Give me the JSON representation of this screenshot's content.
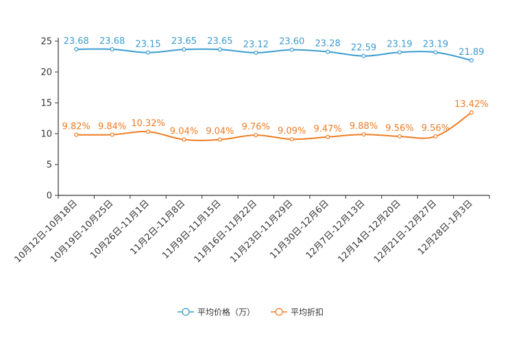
{
  "chart_data": {
    "type": "line",
    "title": "",
    "xlabel": "",
    "ylabel": "",
    "ylim": [
      0,
      25
    ],
    "yticks": [
      0,
      5,
      10,
      15,
      20,
      25
    ],
    "grid": false,
    "legend_position": "bottom-center",
    "categories": [
      "10月12日-10月18日",
      "10月19日-10月25日",
      "10月26日-11月1日",
      "11月2日-11月8日",
      "11月9日-11月15日",
      "11月16日-11月22日",
      "11月23日-11月29日",
      "11月30日-12月6日",
      "12月7日-12月13日",
      "12月14日-12月20日",
      "12月21日-12月27日",
      "12月28日-1月3日"
    ],
    "series": [
      {
        "name": "平均价格（万）",
        "color": "#3a9bd0",
        "values": [
          23.68,
          23.68,
          23.15,
          23.65,
          23.65,
          23.12,
          23.6,
          23.28,
          22.59,
          23.19,
          23.19,
          21.89
        ],
        "labels": [
          "23.68",
          "23.68",
          "23.15",
          "23.65",
          "23.65",
          "23.12",
          "23.60",
          "23.28",
          "22.59",
          "23.19",
          "23.19",
          "21.89"
        ]
      },
      {
        "name": "平均折扣",
        "color": "#f07b22",
        "values": [
          9.82,
          9.84,
          10.32,
          9.04,
          9.04,
          9.76,
          9.09,
          9.47,
          9.88,
          9.56,
          9.56,
          13.42
        ],
        "labels": [
          "9.82%",
          "9.84%",
          "10.32%",
          "9.04%",
          "9.04%",
          "9.76%",
          "9.09%",
          "9.47%",
          "9.88%",
          "9.56%",
          "9.56%",
          "13.42%"
        ]
      }
    ]
  }
}
